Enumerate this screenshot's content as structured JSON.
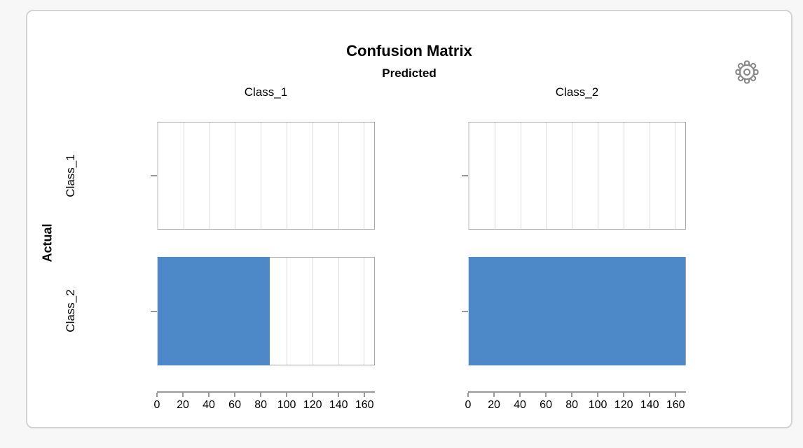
{
  "icons": {
    "settings": "gear"
  },
  "chart_data": {
    "type": "bar",
    "orientation": "horizontal",
    "title": "Confusion Matrix",
    "facet_x_label": "Predicted",
    "facet_y_label": "Actual",
    "predicted_classes": [
      "Class_1",
      "Class_2"
    ],
    "actual_classes": [
      "Class_1",
      "Class_2"
    ],
    "counts_by_actual_then_predicted": [
      [
        0,
        0
      ],
      [
        87,
        168
      ]
    ],
    "x_axis": {
      "min": 0,
      "max": 168,
      "ticks": [
        0,
        20,
        40,
        60,
        80,
        100,
        120,
        140,
        160
      ]
    },
    "grid": true,
    "legend": "none",
    "bar_color": "#4D88C9",
    "gridline_color": "#dcdcdc",
    "axis_color": "#9a9a9a"
  }
}
